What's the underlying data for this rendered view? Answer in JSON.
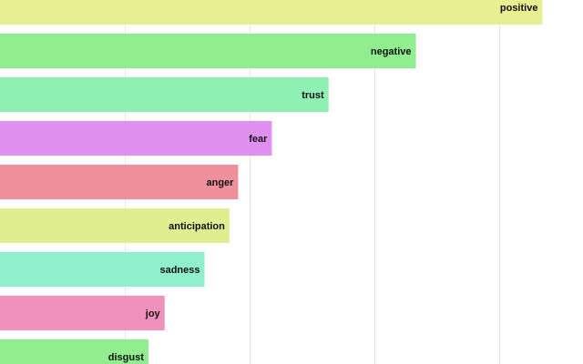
{
  "chart_data": {
    "type": "bar",
    "orientation": "horizontal",
    "categories": [
      "positive",
      "negative",
      "trust",
      "fear",
      "anger",
      "anticipation",
      "sadness",
      "joy",
      "disgust"
    ],
    "values": [
      87,
      66.7,
      52.7,
      43.6,
      38.2,
      36.8,
      32.8,
      26.4,
      23.8
    ],
    "colors": [
      "#e8ef91",
      "#90ee90",
      "#90f0b4",
      "#e090f0",
      "#f0909c",
      "#e0ee90",
      "#90f0cc",
      "#f090bc",
      "#90ee90"
    ],
    "xlim": [
      0,
      90
    ],
    "gridlines": [
      0,
      20,
      40,
      60,
      80
    ],
    "grid": true,
    "title": "",
    "xlabel": "",
    "ylabel": ""
  }
}
